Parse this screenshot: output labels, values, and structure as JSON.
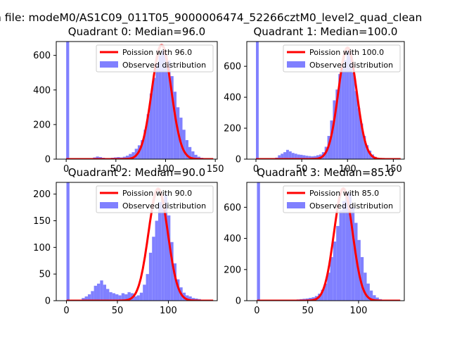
{
  "figure": {
    "suptitle": "n file: modeM0/AS1C09_011T05_9000006474_52266cztM0_level2_quad_clean"
  },
  "colors": {
    "hist": "#8080ff",
    "curve": "#ff0000",
    "curve_highlight": "#ff9090",
    "axes": "#000000",
    "legend_border": "#cccccc"
  },
  "chart_data": [
    {
      "type": "bar",
      "title": "Quadrant 0: Median=96.0",
      "median": 96.0,
      "legend": {
        "placement": "top-right",
        "curve_label": "Poission with 96.0",
        "hist_label": "Observed distribution"
      },
      "xlim": [
        -10,
        152
      ],
      "ylim": [
        0,
        680
      ],
      "xticks": [
        0,
        50,
        100,
        150
      ],
      "yticks": [
        0,
        200,
        400,
        600
      ],
      "bin_width": 3,
      "zero_spike": 690,
      "curve": {
        "peak": 660,
        "sigma": 9.8
      },
      "hist": {
        "x": [
          24,
          27,
          30,
          33,
          36,
          39,
          42,
          45,
          48,
          51,
          54,
          57,
          60,
          63,
          66,
          69,
          72,
          75,
          78,
          81,
          84,
          87,
          90,
          93,
          96,
          99,
          102,
          105,
          108,
          111,
          114,
          117,
          120,
          123,
          126,
          129,
          132,
          135,
          138,
          141
        ],
        "values": [
          5,
          10,
          15,
          12,
          8,
          6,
          5,
          8,
          10,
          12,
          10,
          14,
          20,
          30,
          40,
          60,
          80,
          110,
          170,
          260,
          380,
          470,
          560,
          600,
          630,
          610,
          570,
          480,
          390,
          300,
          240,
          170,
          110,
          70,
          45,
          25,
          14,
          8,
          4,
          2
        ]
      }
    },
    {
      "type": "bar",
      "title": "Quadrant 1: Median=100.0",
      "median": 100.0,
      "legend": {
        "placement": "top-right",
        "curve_label": "Poission with 100.0",
        "hist_label": "Observed distribution"
      },
      "xlim": [
        -10,
        162
      ],
      "ylim": [
        0,
        760
      ],
      "xticks": [
        0,
        50,
        100,
        150
      ],
      "yticks": [
        0,
        200,
        400,
        600
      ],
      "bin_width": 3,
      "zero_spike": 770,
      "curve": {
        "peak": 720,
        "sigma": 10.0
      },
      "hist": {
        "x": [
          21,
          24,
          27,
          30,
          33,
          36,
          39,
          42,
          45,
          48,
          51,
          54,
          57,
          60,
          63,
          66,
          69,
          72,
          75,
          78,
          81,
          84,
          87,
          90,
          93,
          96,
          99,
          102,
          105,
          108,
          111,
          114,
          117,
          120,
          123,
          126,
          129,
          132,
          135,
          138,
          141
        ],
        "values": [
          10,
          25,
          35,
          45,
          60,
          50,
          40,
          35,
          30,
          28,
          25,
          22,
          20,
          18,
          20,
          25,
          30,
          45,
          80,
          150,
          250,
          380,
          450,
          550,
          600,
          640,
          700,
          690,
          560,
          440,
          330,
          230,
          150,
          90,
          55,
          30,
          15,
          8,
          5,
          3,
          2
        ]
      }
    },
    {
      "type": "bar",
      "title": "Quadrant 2: Median=90.0",
      "median": 90.0,
      "legend": {
        "placement": "top-right",
        "curve_label": "Poission with 90.0",
        "hist_label": "Observed distribution"
      },
      "xlim": [
        -10,
        148
      ],
      "ylim": [
        0,
        222
      ],
      "xticks": [
        0,
        50,
        100
      ],
      "yticks": [
        0,
        50,
        100,
        150,
        200
      ],
      "bin_width": 3,
      "zero_spike": 225,
      "curve": {
        "peak": 210,
        "sigma": 9.5
      },
      "hist": {
        "x": [
          15,
          18,
          21,
          24,
          27,
          30,
          33,
          36,
          39,
          42,
          45,
          48,
          51,
          54,
          57,
          60,
          63,
          66,
          69,
          72,
          75,
          78,
          81,
          84,
          87,
          90,
          93,
          96,
          99,
          102,
          105,
          108,
          111,
          114,
          117,
          120,
          123,
          126,
          129,
          132
        ],
        "values": [
          5,
          8,
          12,
          18,
          28,
          32,
          38,
          30,
          22,
          16,
          14,
          12,
          10,
          14,
          12,
          16,
          14,
          8,
          10,
          15,
          30,
          50,
          90,
          120,
          150,
          185,
          190,
          200,
          160,
          110,
          70,
          40,
          25,
          15,
          10,
          8,
          5,
          4,
          3,
          2
        ]
      }
    },
    {
      "type": "bar",
      "title": "Quadrant 3: Median=85.0",
      "median": 85.0,
      "legend": {
        "placement": "top-right",
        "curve_label": "Poission with 85.0",
        "hist_label": "Observed distribution"
      },
      "xlim": [
        -10,
        145
      ],
      "ylim": [
        0,
        760
      ],
      "xticks": [
        0,
        50,
        100
      ],
      "yticks": [
        0,
        200,
        400,
        600
      ],
      "bin_width": 3,
      "zero_spike": 770,
      "curve": {
        "peak": 720,
        "sigma": 9.2
      },
      "hist": {
        "x": [
          33,
          36,
          39,
          42,
          45,
          48,
          51,
          54,
          57,
          60,
          63,
          66,
          69,
          72,
          75,
          78,
          81,
          84,
          87,
          90,
          93,
          96,
          99,
          102,
          105,
          108,
          111,
          114,
          117,
          120,
          123,
          126
        ],
        "values": [
          3,
          5,
          8,
          10,
          12,
          14,
          18,
          22,
          30,
          45,
          70,
          110,
          180,
          280,
          380,
          480,
          580,
          640,
          700,
          690,
          600,
          500,
          390,
          280,
          180,
          110,
          65,
          35,
          20,
          10,
          5,
          3
        ]
      }
    }
  ]
}
